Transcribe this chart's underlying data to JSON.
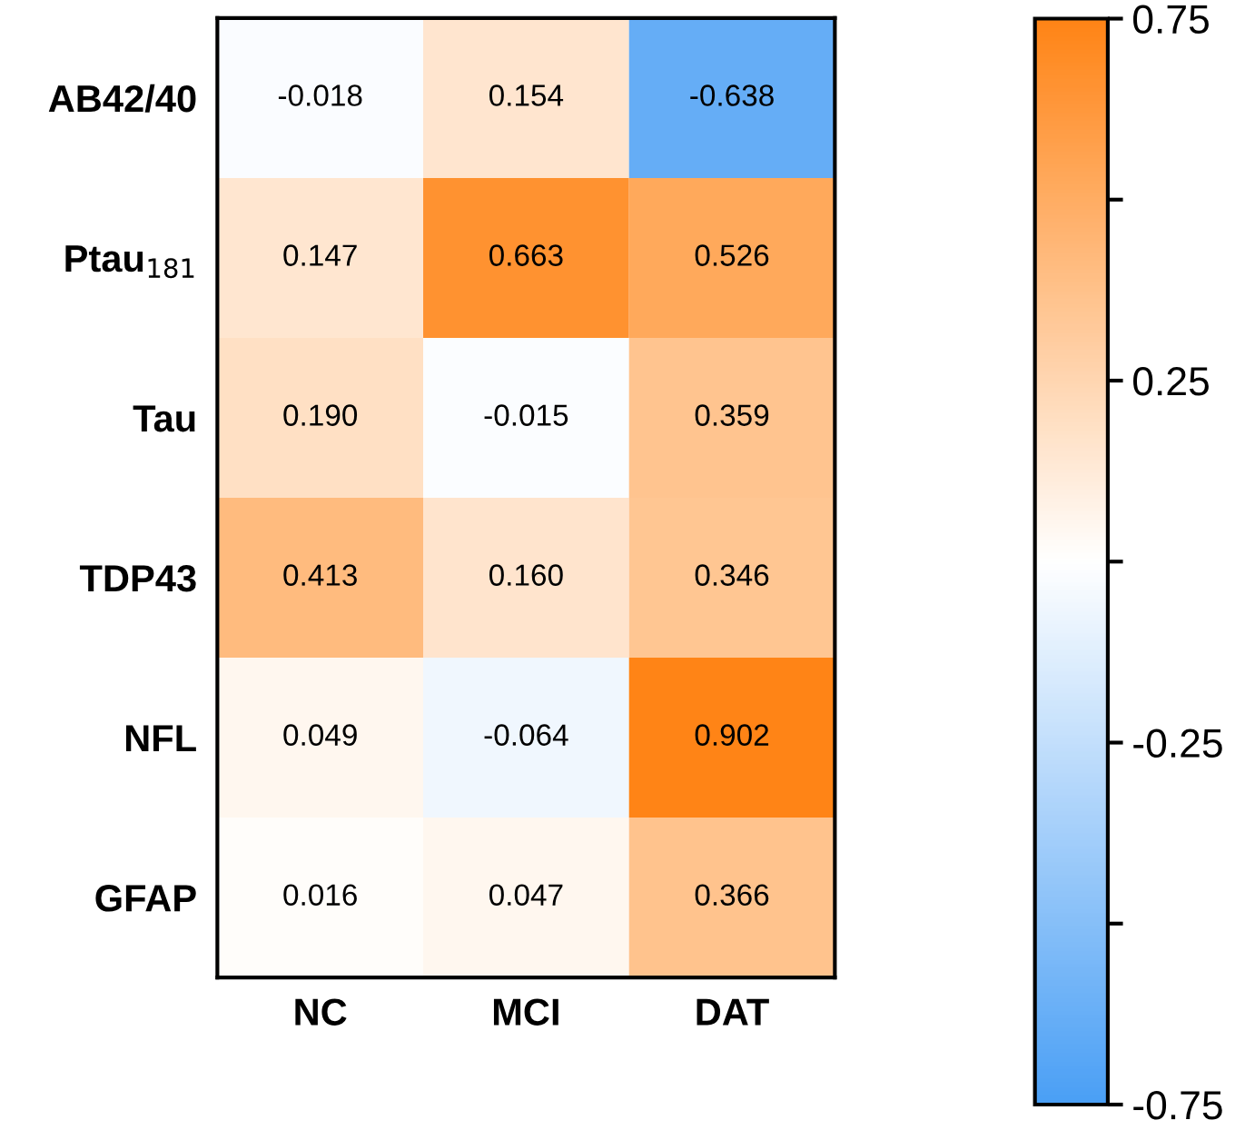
{
  "chart_data": {
    "type": "heatmap",
    "categories": [
      "NC",
      "MCI",
      "DAT"
    ],
    "y_categories": [
      "AB42/40",
      "Ptau$_{181}$",
      "Tau",
      "TDP43",
      "NFL",
      "GFAP"
    ],
    "cells": [
      [
        -0.018,
        0.154,
        -0.638
      ],
      [
        0.147,
        0.663,
        0.526
      ],
      [
        0.19,
        -0.015,
        0.359
      ],
      [
        0.413,
        0.16,
        0.346
      ],
      [
        0.049,
        -0.064,
        0.902
      ],
      [
        0.016,
        0.047,
        0.366
      ]
    ],
    "cell_labels": [
      [
        "-0.018",
        "0.154",
        "-0.638"
      ],
      [
        "0.147",
        "0.663",
        "0.526"
      ],
      [
        "0.190",
        "-0.015",
        "0.359"
      ],
      [
        "0.413",
        "0.160",
        "0.346"
      ],
      [
        "0.049",
        "-0.064",
        "0.902"
      ],
      [
        "0.016",
        "0.047",
        "0.366"
      ]
    ],
    "colors": [
      "#4a9ff5",
      "#ffffff",
      "#ff8416"
    ],
    "clim": [
      -0.75,
      0.75
    ],
    "cticks": [
      0.75,
      {
        "value": 0.5,
        "label": null
      },
      0.25,
      {
        "value": 0,
        "label": null
      },
      -0.25,
      {
        "value": -0.5,
        "label": null
      },
      -0.75
    ],
    "data_labels": true
  }
}
